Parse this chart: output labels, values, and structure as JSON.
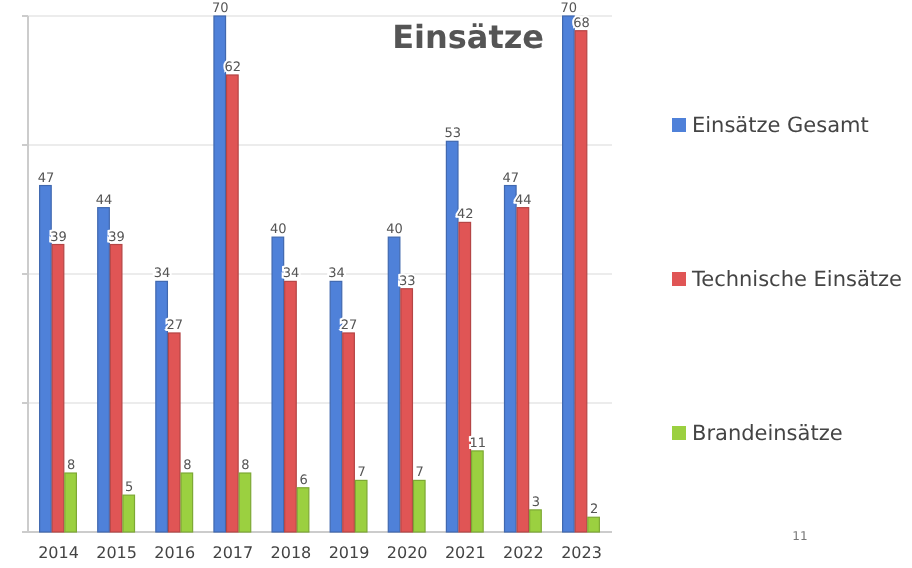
{
  "chart_data": {
    "type": "bar",
    "title": "Einsätze",
    "categories": [
      "2014",
      "2015",
      "2016",
      "2017",
      "2018",
      "2019",
      "2020",
      "2021",
      "2022",
      "2023"
    ],
    "series": [
      {
        "name": "Einsätze Gesamt",
        "color": "#4f81d9",
        "values": [
          47,
          44,
          34,
          70,
          40,
          34,
          40,
          53,
          47,
          70
        ]
      },
      {
        "name": "Technische Einsätze",
        "color": "#e05555",
        "values": [
          39,
          39,
          27,
          62,
          34,
          27,
          33,
          42,
          44,
          68
        ]
      },
      {
        "name": "Brandeinsätze",
        "color": "#9bd040",
        "values": [
          8,
          5,
          8,
          8,
          6,
          7,
          7,
          11,
          3,
          2
        ]
      }
    ],
    "ylim": [
      0,
      70
    ],
    "yticks": [
      {
        "value": 0,
        "label": null
      },
      {
        "value": 17.5,
        "label": null
      },
      {
        "value": 35,
        "label": null
      },
      {
        "value": 52.5,
        "label": null
      },
      {
        "value": 70,
        "label": null
      }
    ],
    "grid": true,
    "data_labels": true,
    "legend": "right",
    "annotations": [
      "11"
    ]
  }
}
